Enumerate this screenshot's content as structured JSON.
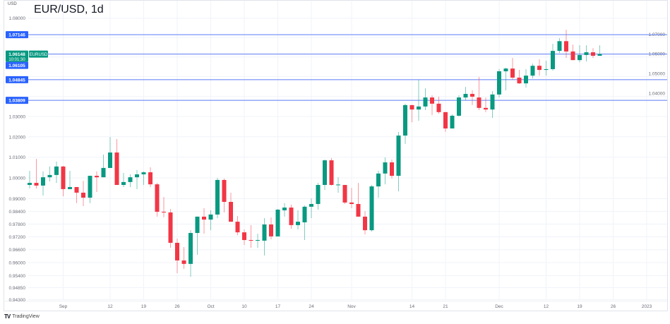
{
  "header": {
    "title": "EUR/USD, 1d",
    "unit": "USD"
  },
  "footer": {
    "brand": "TradingView",
    "logo_mark": "TV"
  },
  "colors": {
    "up": "#089981",
    "down": "#f23645",
    "level": "#5b7cf5",
    "grid": "#f0f3fa",
    "text": "#6a6d78"
  },
  "chart_data": {
    "type": "candlestick",
    "title": "EUR/USD, 1d",
    "ylabel": "USD",
    "yscale": "log",
    "ylim": [
      0.9405,
      1.0815
    ],
    "y_ticks": [
      "1.08000",
      "1.07000",
      "1.06000",
      "1.05000",
      "1.04000",
      "1.03000",
      "1.02000",
      "1.01000",
      "1.00000",
      "0.99000",
      "0.98400",
      "0.97800",
      "0.97200",
      "0.96600",
      "0.96000",
      "0.95400",
      "0.94850",
      "0.94300"
    ],
    "x_ticks": [
      {
        "label": "Sep",
        "index": 5
      },
      {
        "label": "12",
        "index": 12
      },
      {
        "label": "19",
        "index": 17
      },
      {
        "label": "26",
        "index": 22
      },
      {
        "label": "Oct",
        "index": 27
      },
      {
        "label": "10",
        "index": 32
      },
      {
        "label": "17",
        "index": 37
      },
      {
        "label": "24",
        "index": 42
      },
      {
        "label": "Nov",
        "index": 48
      },
      {
        "label": "14",
        "index": 57
      },
      {
        "label": "21",
        "index": 62
      },
      {
        "label": "Dec",
        "index": 70
      },
      {
        "label": "12",
        "index": 77
      },
      {
        "label": "19",
        "index": 82
      },
      {
        "label": "26",
        "index": 87
      },
      {
        "label": "2023",
        "index": 92
      }
    ],
    "levels": [
      {
        "label": "1.07146",
        "value": 1.07146,
        "line": true
      },
      {
        "label": "1.04845",
        "value": 1.04845,
        "line": true
      },
      {
        "label": "1.03809",
        "value": 1.03809,
        "line": true
      }
    ],
    "last_price": {
      "label": "1.06148",
      "value": 1.06148,
      "countdown": "10:01:30",
      "symbol": "EURUSD",
      "bid_label": "1.06105"
    },
    "ohlc": [
      [
        0.9966,
        1.0034,
        0.9949,
        0.9976
      ],
      [
        0.9976,
        1.0092,
        0.9949,
        0.9963
      ],
      [
        0.9963,
        1.0031,
        0.9915,
        1.0003
      ],
      [
        1.0003,
        1.0055,
        0.9983,
        1.0014
      ],
      [
        1.0014,
        1.0079,
        0.9976,
        1.0055
      ],
      [
        1.0055,
        1.0058,
        0.9912,
        0.9946
      ],
      [
        0.9946,
        1.0034,
        0.9946,
        0.9956
      ],
      [
        0.9956,
        0.9956,
        0.9879,
        0.9929
      ],
      [
        0.9929,
        0.9986,
        0.9865,
        0.9905
      ],
      [
        0.9905,
        1.001,
        0.9879,
        1.001
      ],
      [
        1.001,
        1.0031,
        0.9932,
        1.0003
      ],
      [
        1.0003,
        1.0113,
        1.0003,
        1.0048
      ],
      [
        1.0048,
        1.0199,
        1.0048,
        1.0123
      ],
      [
        1.0123,
        1.0189,
        0.9966,
        0.9966
      ],
      [
        0.9966,
        1.0024,
        0.9956,
        0.998
      ],
      [
        0.998,
        1.0017,
        0.9956,
        1.0003
      ],
      [
        1.0003,
        1.0038,
        0.9946,
        1.0017
      ],
      [
        1.0017,
        1.0031,
        0.9966,
        1.0027
      ],
      [
        1.0027,
        1.0051,
        0.9956,
        0.9969
      ],
      [
        0.9969,
        0.9976,
        0.9815,
        0.9838
      ],
      [
        0.9838,
        0.9908,
        0.9812,
        0.9835
      ],
      [
        0.9835,
        0.9851,
        0.9669,
        0.9692
      ],
      [
        0.9692,
        0.9712,
        0.9551,
        0.961
      ],
      [
        0.961,
        0.9672,
        0.9571,
        0.9594
      ],
      [
        0.9594,
        0.9751,
        0.9535,
        0.9738
      ],
      [
        0.9738,
        0.9815,
        0.9636,
        0.9815
      ],
      [
        0.9815,
        0.9855,
        0.9735,
        0.9801
      ],
      [
        0.9801,
        0.9845,
        0.9751,
        0.9825
      ],
      [
        0.9825,
        1.0,
        0.9808,
        0.999
      ],
      [
        0.999,
        0.9997,
        0.9835,
        0.9885
      ],
      [
        0.9885,
        0.9929,
        0.9791,
        0.9791
      ],
      [
        0.9791,
        0.9818,
        0.9728,
        0.9741
      ],
      [
        0.9741,
        0.9755,
        0.9682,
        0.9705
      ],
      [
        0.9705,
        0.9775,
        0.9669,
        0.9703
      ],
      [
        0.9702,
        0.9735,
        0.9669,
        0.9705
      ],
      [
        0.9702,
        0.9808,
        0.9633,
        0.9778
      ],
      [
        0.9778,
        0.9811,
        0.9708,
        0.9722
      ],
      [
        0.9722,
        0.9851,
        0.9722,
        0.9848
      ],
      [
        0.9845,
        0.9879,
        0.9815,
        0.9858
      ],
      [
        0.9858,
        0.9872,
        0.9758,
        0.9775
      ],
      [
        0.9775,
        0.9845,
        0.9755,
        0.9791
      ],
      [
        0.9788,
        0.9868,
        0.9705,
        0.9862
      ],
      [
        0.9862,
        0.9902,
        0.9808,
        0.9875
      ],
      [
        0.9875,
        0.9976,
        0.9848,
        0.9966
      ],
      [
        0.9966,
        1.0089,
        0.9942,
        1.0085
      ],
      [
        1.0085,
        1.0096,
        0.9963,
        0.9966
      ],
      [
        0.9966,
        1.0003,
        0.9929,
        0.9968
      ],
      [
        0.9966,
        0.9966,
        0.9875,
        0.9882
      ],
      [
        0.9882,
        0.9952,
        0.9855,
        0.9875
      ],
      [
        0.9875,
        0.9976,
        0.9815,
        0.9815
      ],
      [
        0.9815,
        0.9841,
        0.9731,
        0.9751
      ],
      [
        0.9751,
        0.9966,
        0.9745,
        0.9959
      ],
      [
        0.9959,
        1.0034,
        0.9905,
        1.0021
      ],
      [
        1.0021,
        1.0099,
        0.9969,
        1.0075
      ],
      [
        1.0075,
        1.0089,
        0.9997,
        1.001
      ],
      [
        1.001,
        1.0224,
        0.9935,
        1.0206
      ],
      [
        1.0206,
        1.0364,
        1.0165,
        1.0357
      ],
      [
        1.0357,
        1.0357,
        1.0272,
        1.0335
      ],
      [
        1.0335,
        1.0484,
        1.0279,
        1.035
      ],
      [
        1.035,
        1.0441,
        1.0332,
        1.0395
      ],
      [
        1.0395,
        1.0406,
        1.0307,
        1.0364
      ],
      [
        1.0364,
        1.0399,
        1.0314,
        1.0322
      ],
      [
        1.0322,
        1.0322,
        1.0224,
        1.0241
      ],
      [
        1.0241,
        1.0311,
        1.0241,
        1.0304
      ],
      [
        1.0304,
        1.0406,
        1.03,
        1.0395
      ],
      [
        1.0395,
        1.0448,
        1.0381,
        1.0413
      ],
      [
        1.0413,
        1.0431,
        1.0357,
        1.0399
      ],
      [
        1.0395,
        1.0498,
        1.0332,
        1.0343
      ],
      [
        1.0343,
        1.0395,
        1.0322,
        1.0335
      ],
      [
        1.0335,
        1.0427,
        1.0293,
        1.041
      ],
      [
        1.041,
        1.0538,
        1.0395,
        1.0527
      ],
      [
        1.0527,
        1.0545,
        1.0431,
        1.0541
      ],
      [
        1.0541,
        1.0595,
        1.0484,
        1.0495
      ],
      [
        1.0495,
        1.0534,
        1.0463,
        1.0466
      ],
      [
        1.0466,
        1.0538,
        1.0445,
        1.0505
      ],
      [
        1.0505,
        1.0566,
        1.0491,
        1.0555
      ],
      [
        1.0555,
        1.0588,
        1.0505,
        1.0534
      ],
      [
        1.0534,
        1.0581,
        1.0505,
        1.0538
      ],
      [
        1.0538,
        1.0667,
        1.053,
        1.0631
      ],
      [
        1.0631,
        1.0696,
        1.062,
        1.0681
      ],
      [
        1.0681,
        1.074,
        1.0595,
        1.0628
      ],
      [
        1.0628,
        1.0663,
        1.0584,
        1.0584
      ],
      [
        1.0584,
        1.066,
        1.0573,
        1.061
      ],
      [
        1.061,
        1.066,
        1.0577,
        1.0624
      ],
      [
        1.0624,
        1.0645,
        1.0595,
        1.0606
      ],
      [
        1.0606,
        1.066,
        1.0606,
        1.0615
      ]
    ]
  }
}
